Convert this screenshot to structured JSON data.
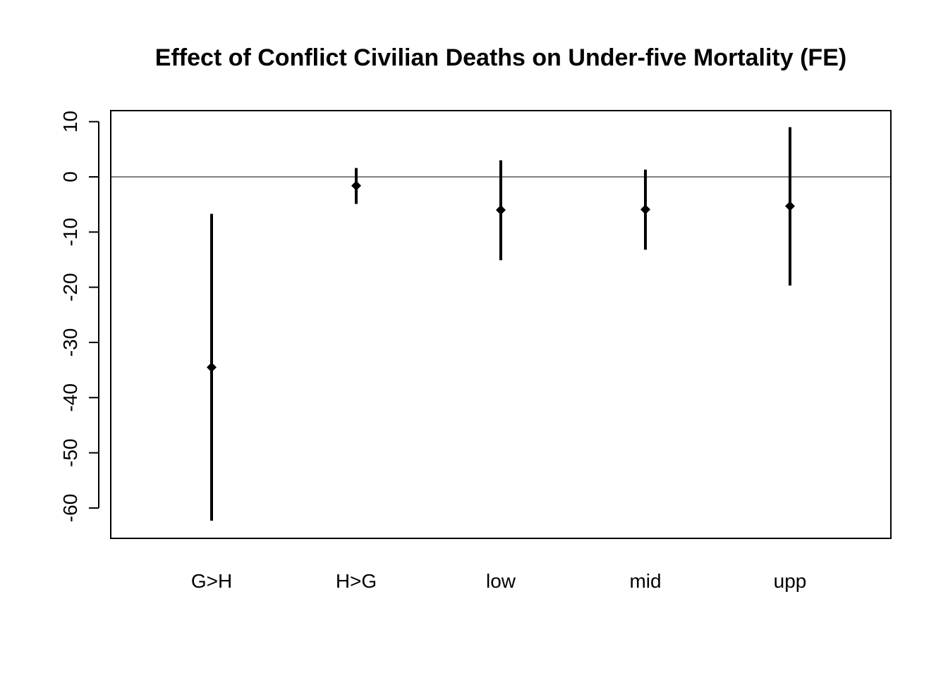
{
  "chart_data": {
    "type": "errorbar",
    "title": "Effect of Conflict Civilian Deaths on Under-five Mortality (FE)",
    "xlabel": "",
    "ylabel": "",
    "categories": [
      "G>H",
      "H>G",
      "low",
      "mid",
      "upp"
    ],
    "estimates": [
      -34.5,
      -1.6,
      -6.0,
      -5.9,
      -5.3
    ],
    "lower": [
      -62.3,
      -4.9,
      -15.1,
      -13.2,
      -19.7
    ],
    "upper": [
      -6.7,
      1.6,
      3.0,
      1.3,
      9.0
    ],
    "ylim": [
      -65.5,
      12.0
    ],
    "yticks": [
      10,
      0,
      -10,
      -20,
      -30,
      -40,
      -50,
      -60
    ],
    "ytick_labels": [
      "10",
      "0",
      "-10",
      "-20",
      "-30",
      "-40",
      "-50",
      "-60"
    ],
    "reference_line": 0,
    "grid": false,
    "legend": "none",
    "colors": {
      "marks": "#000000",
      "axes": "#000000",
      "background": "#ffffff"
    }
  }
}
